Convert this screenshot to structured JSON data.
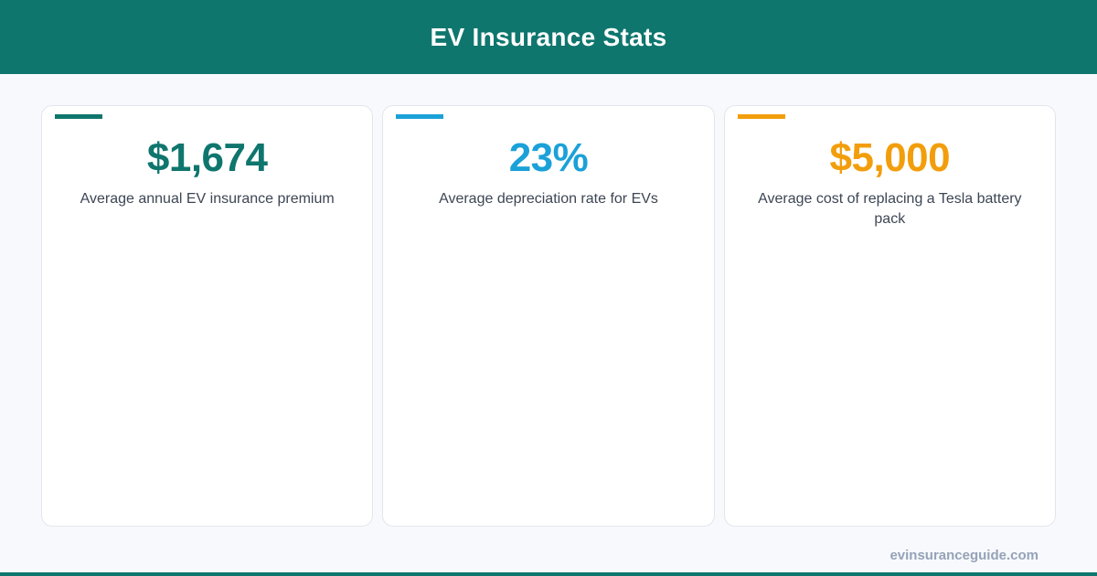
{
  "header": {
    "title": "EV Insurance Stats"
  },
  "colors": {
    "brand": "#0f766e",
    "card1_accent": "#0f766e",
    "card2_accent": "#1ba1d8",
    "card3_accent": "#f29e0c"
  },
  "cards": [
    {
      "value": "$1,674",
      "description": "Average annual EV insurance premium"
    },
    {
      "value": "23%",
      "description": "Average depreciation rate for EVs"
    },
    {
      "value": "$5,000",
      "description": "Average cost of replacing a Tesla battery pack"
    }
  ],
  "footer": {
    "site": "evinsuranceguide.com"
  }
}
